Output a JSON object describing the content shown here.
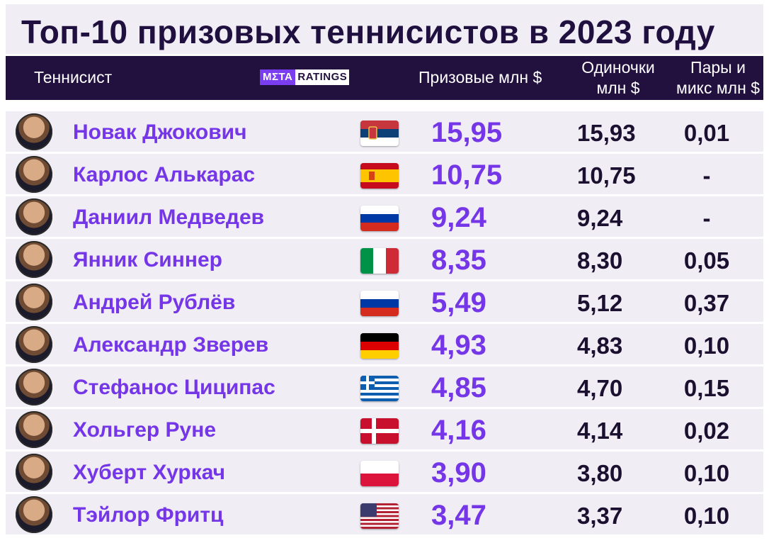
{
  "title": "Топ-10 призовых теннисистов в 2023 году",
  "header": {
    "player": "Теннисист",
    "logo_left": "MΣTA",
    "logo_right": "RATINGS",
    "prize": "Призовые млн $",
    "singles": "Одиночки млн $",
    "doubles": "Пары и микс млн $"
  },
  "colors": {
    "accent": "#7436e6",
    "dark": "#22103f",
    "row_bg": "#f0edf5"
  },
  "chart_data": {
    "type": "table",
    "title": "Топ-10 призовых теннисистов в 2023 году",
    "columns": [
      "Теннисист",
      "Призовые млн $",
      "Одиночки млн $",
      "Пары и микс млн $"
    ],
    "rows": [
      {
        "name": "Новак Джокович",
        "flag": "serbia",
        "prize": "15,95",
        "singles": "15,93",
        "doubles": "0,01"
      },
      {
        "name": "Карлос Алькарас",
        "flag": "spain",
        "prize": "10,75",
        "singles": "10,75",
        "doubles": "-"
      },
      {
        "name": "Даниил Медведев",
        "flag": "russia",
        "prize": "9,24",
        "singles": "9,24",
        "doubles": "-"
      },
      {
        "name": "Янник Синнер",
        "flag": "italy",
        "prize": "8,35",
        "singles": "8,30",
        "doubles": "0,05"
      },
      {
        "name": "Андрей Рублёв",
        "flag": "russia",
        "prize": "5,49",
        "singles": "5,12",
        "doubles": "0,37"
      },
      {
        "name": "Александр Зверев",
        "flag": "germany",
        "prize": "4,93",
        "singles": "4,83",
        "doubles": "0,10"
      },
      {
        "name": "Стефанос Циципас",
        "flag": "greece",
        "prize": "4,85",
        "singles": "4,70",
        "doubles": "0,15"
      },
      {
        "name": "Хольгер Руне",
        "flag": "denmark",
        "prize": "4,16",
        "singles": "4,14",
        "doubles": "0,02"
      },
      {
        "name": "Хуберт Хуркач",
        "flag": "poland",
        "prize": "3,90",
        "singles": "3,80",
        "doubles": "0,10"
      },
      {
        "name": "Тэйлор Фритц",
        "flag": "usa",
        "prize": "3,47",
        "singles": "3,37",
        "doubles": "0,10"
      }
    ]
  }
}
